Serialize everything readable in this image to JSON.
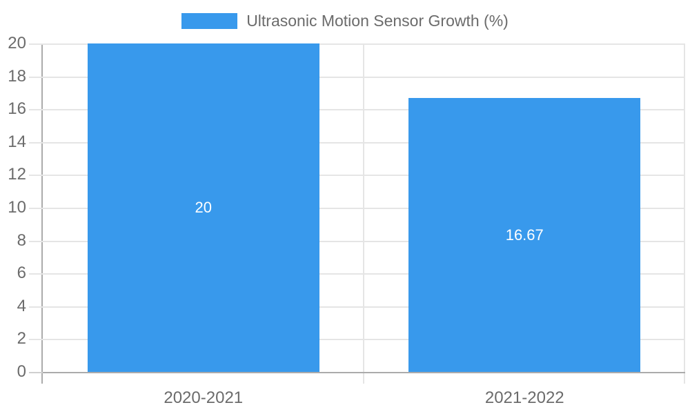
{
  "chart_data": {
    "type": "bar",
    "title": "Ultrasonic Motion Sensor Growth (%)",
    "legend": {
      "label": "Ultrasonic Motion Sensor Growth (%)",
      "position": "top-center"
    },
    "categories": [
      "2020-2021",
      "2021-2022"
    ],
    "series": [
      {
        "name": "Ultrasonic Motion Sensor Growth (%)",
        "values": [
          20,
          16.67
        ],
        "labels": [
          "20",
          "16.67"
        ]
      }
    ],
    "xlabel": "",
    "ylabel": "",
    "ylim": [
      0,
      20
    ],
    "yticks": [
      0,
      2,
      4,
      6,
      8,
      10,
      12,
      14,
      16,
      18,
      20
    ],
    "grid": "horizontal gridlines plus category boundary verticals",
    "colors": {
      "bar": "#3899EC",
      "grid": "#E5E5E5",
      "tick": "#CFCFCF",
      "axis": "#ABABAB",
      "tick_text": "#6B6B6B",
      "data_label": "#FFFFFF",
      "background": "#FFFFFF"
    }
  }
}
